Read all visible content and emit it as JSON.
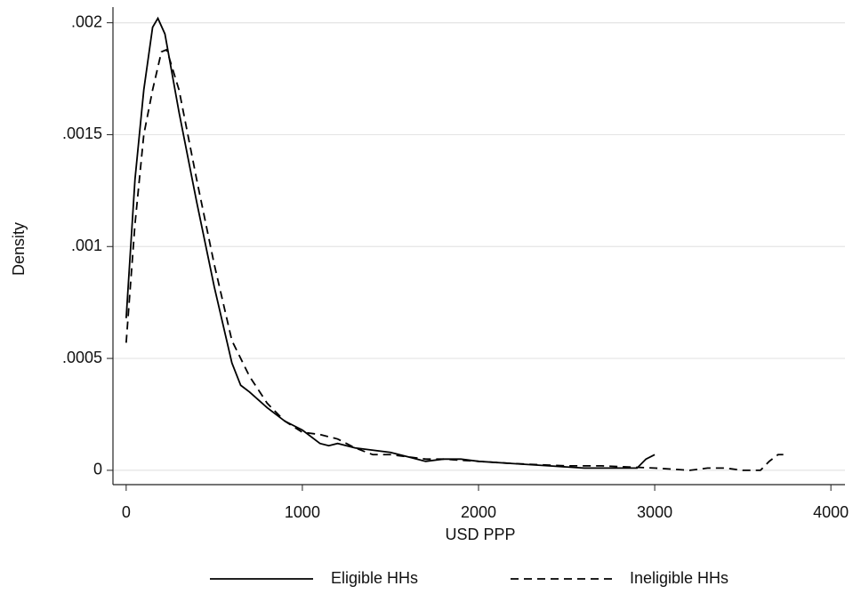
{
  "chart_data": {
    "type": "line",
    "xlabel": "USD PPP",
    "ylabel": "Density",
    "xlim": [
      -75,
      4080
    ],
    "ylim": [
      -6.4e-05,
      0.00207
    ],
    "xticks": [
      0,
      1000,
      2000,
      3000,
      4000
    ],
    "yticks": [
      0,
      {
        "value": 0.0005,
        "label": ".0005"
      },
      {
        "value": 0.001,
        "label": ".001"
      },
      {
        "value": 0.0015,
        "label": ".0015"
      },
      {
        "value": 0.002,
        "label": ".002"
      }
    ],
    "grid": true,
    "legend": "bottom",
    "series": [
      {
        "name": "Eligible HHs",
        "color": "#000000",
        "dash": "solid",
        "x": [
          0,
          50,
          100,
          150,
          180,
          220,
          300,
          400,
          500,
          600,
          650,
          700,
          800,
          900,
          1000,
          1100,
          1150,
          1200,
          1300,
          1400,
          1500,
          1600,
          1700,
          1800,
          1900,
          2000,
          2200,
          2400,
          2600,
          2800,
          2900,
          2950,
          3000
        ],
        "values": [
          0.00068,
          0.0013,
          0.0017,
          0.00198,
          0.00202,
          0.00195,
          0.0016,
          0.0012,
          0.00082,
          0.00048,
          0.00038,
          0.00035,
          0.00028,
          0.00022,
          0.00018,
          0.00012,
          0.00011,
          0.00012,
          0.0001,
          9e-05,
          8e-05,
          6e-05,
          4e-05,
          5e-05,
          5e-05,
          4e-05,
          3e-05,
          2e-05,
          1e-05,
          1e-05,
          1e-05,
          5e-05,
          7e-05
        ]
      },
      {
        "name": "Ineligible HHs",
        "color": "#000000",
        "dash": "dashed",
        "x": [
          0,
          50,
          100,
          150,
          200,
          230,
          300,
          400,
          500,
          600,
          700,
          800,
          900,
          1000,
          1100,
          1200,
          1300,
          1400,
          1500,
          1600,
          1700,
          1800,
          2000,
          2200,
          2500,
          2700,
          3000,
          3200,
          3300,
          3400,
          3500,
          3600,
          3650,
          3700,
          3730
        ],
        "values": [
          0.00057,
          0.0011,
          0.0015,
          0.0017,
          0.00187,
          0.00188,
          0.0017,
          0.0013,
          0.00092,
          0.00058,
          0.00042,
          0.0003,
          0.00022,
          0.00017,
          0.00016,
          0.00014,
          0.0001,
          7e-05,
          7e-05,
          6e-05,
          5e-05,
          5e-05,
          4e-05,
          3e-05,
          2e-05,
          2e-05,
          1e-05,
          0,
          1e-05,
          1e-05,
          0,
          0,
          4e-05,
          7e-05,
          7e-05
        ]
      }
    ]
  }
}
